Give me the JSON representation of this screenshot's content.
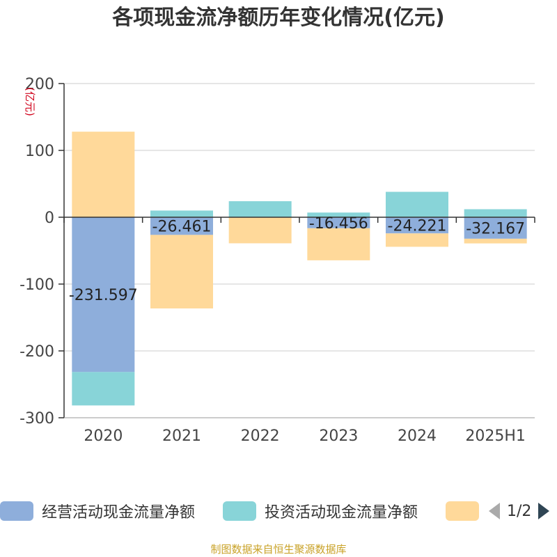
{
  "title": "各项现金流净额历年变化情况(亿元)",
  "source": "制图数据来自恒生聚源数据库",
  "legend": {
    "page": "1/2",
    "items": [
      {
        "label": "经营活动现金流量净额",
        "color": "#8eaedb"
      },
      {
        "label": "投资活动现金流量净额",
        "color": "#88d4d8"
      },
      {
        "label": "",
        "color": "#ffd99a"
      }
    ]
  },
  "chart_data": {
    "type": "bar",
    "stacked": true,
    "categories": [
      "2020",
      "2021",
      "2022",
      "2023",
      "2024",
      "2025H1"
    ],
    "ylabel": "(亿元)",
    "ylim": [
      -300,
      200
    ],
    "yticks": [
      200,
      100,
      0,
      -100,
      -200,
      -300
    ],
    "grid": true,
    "series": [
      {
        "name": "经营活动现金流量净额",
        "color": "#8eaedb",
        "values": [
          -231.597,
          -26.461,
          0,
          -16.456,
          -24.221,
          -32.167
        ]
      },
      {
        "name": "投资活动现金流量净额",
        "color": "#88d4d8",
        "values": [
          -50,
          10,
          24,
          7,
          38,
          12
        ]
      },
      {
        "color": "#ffd99a",
        "values": [
          128,
          -110,
          -39,
          -48,
          -20,
          -7
        ]
      }
    ],
    "data_labels": [
      "-231.597",
      "-26.461",
      "",
      "-16.456",
      "-24.221",
      "-32.167"
    ]
  }
}
